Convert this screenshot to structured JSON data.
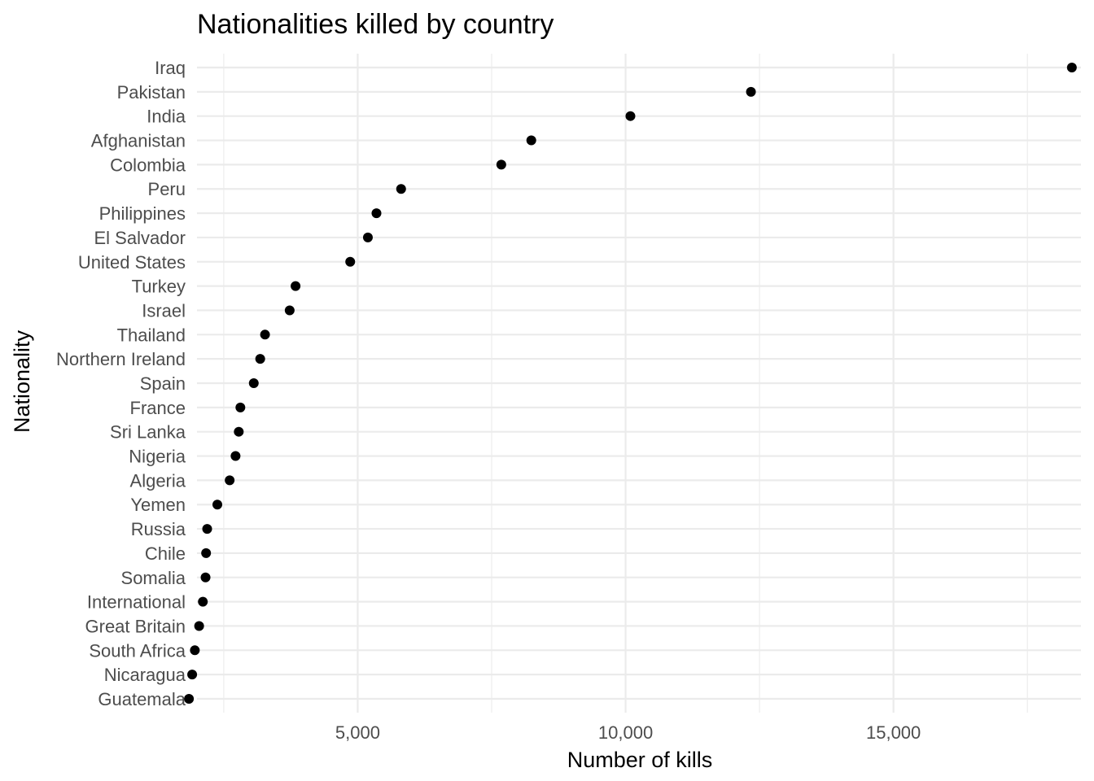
{
  "chart_data": {
    "type": "scatter",
    "title": "Nationalities killed by country",
    "xlabel": "Number of kills",
    "ylabel": "Nationality",
    "xlim": [
      2000,
      18500
    ],
    "xticks": [
      5000,
      10000,
      15000
    ],
    "xtick_labels": [
      "5,000",
      "10,000",
      "15,000"
    ],
    "grid": true,
    "legend": "none",
    "point_color": "#000000",
    "categories": [
      "Iraq",
      "Pakistan",
      "India",
      "Afghanistan",
      "Colombia",
      "Peru",
      "Philippines",
      "El Salvador",
      "United States",
      "Turkey",
      "Israel",
      "Thailand",
      "Northern Ireland",
      "Spain",
      "France",
      "Sri Lanka",
      "Nigeria",
      "Algeria",
      "Yemen",
      "Russia",
      "Chile",
      "Somalia",
      "International",
      "Great Britain",
      "South Africa",
      "Nicaragua",
      "Guatemala"
    ],
    "values": [
      18330,
      12340,
      10090,
      8240,
      7680,
      5810,
      5350,
      5190,
      4860,
      3840,
      3730,
      3270,
      3180,
      3060,
      2810,
      2780,
      2720,
      2610,
      2380,
      2190,
      2170,
      2160,
      2110,
      2040,
      1960,
      1910,
      1850
    ]
  }
}
